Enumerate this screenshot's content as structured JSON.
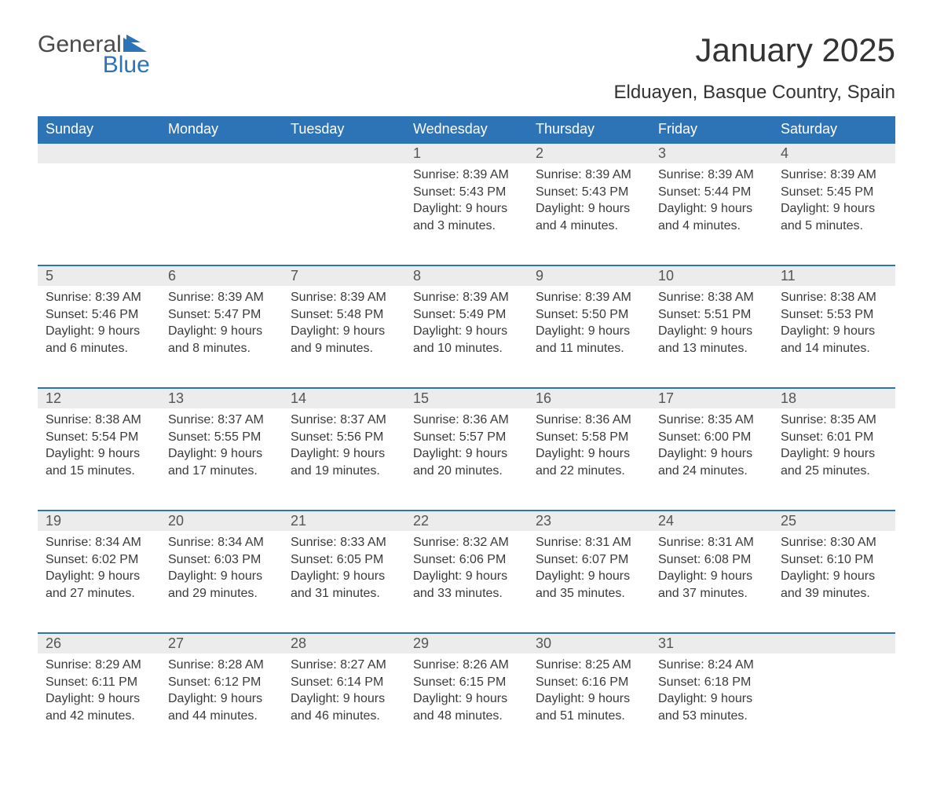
{
  "logo": {
    "text_a": "General",
    "text_b": "Blue"
  },
  "title": "January 2025",
  "location": "Elduayen, Basque Country, Spain",
  "colors": {
    "header_bg": "#2d74b6",
    "header_text": "#ffffff",
    "daynum_bg": "#ececec",
    "border_top": "#2d74b6",
    "body_text": "#3a3a3a",
    "logo_gray": "#4a4a4a",
    "logo_blue": "#2d74b6",
    "page_bg": "#ffffff"
  },
  "day_headers": [
    "Sunday",
    "Monday",
    "Tuesday",
    "Wednesday",
    "Thursday",
    "Friday",
    "Saturday"
  ],
  "weeks": [
    [
      null,
      null,
      null,
      {
        "n": "1",
        "sr": "8:39 AM",
        "ss": "5:43 PM",
        "dl": "9 hours and 3 minutes."
      },
      {
        "n": "2",
        "sr": "8:39 AM",
        "ss": "5:43 PM",
        "dl": "9 hours and 4 minutes."
      },
      {
        "n": "3",
        "sr": "8:39 AM",
        "ss": "5:44 PM",
        "dl": "9 hours and 4 minutes."
      },
      {
        "n": "4",
        "sr": "8:39 AM",
        "ss": "5:45 PM",
        "dl": "9 hours and 5 minutes."
      }
    ],
    [
      {
        "n": "5",
        "sr": "8:39 AM",
        "ss": "5:46 PM",
        "dl": "9 hours and 6 minutes."
      },
      {
        "n": "6",
        "sr": "8:39 AM",
        "ss": "5:47 PM",
        "dl": "9 hours and 8 minutes."
      },
      {
        "n": "7",
        "sr": "8:39 AM",
        "ss": "5:48 PM",
        "dl": "9 hours and 9 minutes."
      },
      {
        "n": "8",
        "sr": "8:39 AM",
        "ss": "5:49 PM",
        "dl": "9 hours and 10 minutes."
      },
      {
        "n": "9",
        "sr": "8:39 AM",
        "ss": "5:50 PM",
        "dl": "9 hours and 11 minutes."
      },
      {
        "n": "10",
        "sr": "8:38 AM",
        "ss": "5:51 PM",
        "dl": "9 hours and 13 minutes."
      },
      {
        "n": "11",
        "sr": "8:38 AM",
        "ss": "5:53 PM",
        "dl": "9 hours and 14 minutes."
      }
    ],
    [
      {
        "n": "12",
        "sr": "8:38 AM",
        "ss": "5:54 PM",
        "dl": "9 hours and 15 minutes."
      },
      {
        "n": "13",
        "sr": "8:37 AM",
        "ss": "5:55 PM",
        "dl": "9 hours and 17 minutes."
      },
      {
        "n": "14",
        "sr": "8:37 AM",
        "ss": "5:56 PM",
        "dl": "9 hours and 19 minutes."
      },
      {
        "n": "15",
        "sr": "8:36 AM",
        "ss": "5:57 PM",
        "dl": "9 hours and 20 minutes."
      },
      {
        "n": "16",
        "sr": "8:36 AM",
        "ss": "5:58 PM",
        "dl": "9 hours and 22 minutes."
      },
      {
        "n": "17",
        "sr": "8:35 AM",
        "ss": "6:00 PM",
        "dl": "9 hours and 24 minutes."
      },
      {
        "n": "18",
        "sr": "8:35 AM",
        "ss": "6:01 PM",
        "dl": "9 hours and 25 minutes."
      }
    ],
    [
      {
        "n": "19",
        "sr": "8:34 AM",
        "ss": "6:02 PM",
        "dl": "9 hours and 27 minutes."
      },
      {
        "n": "20",
        "sr": "8:34 AM",
        "ss": "6:03 PM",
        "dl": "9 hours and 29 minutes."
      },
      {
        "n": "21",
        "sr": "8:33 AM",
        "ss": "6:05 PM",
        "dl": "9 hours and 31 minutes."
      },
      {
        "n": "22",
        "sr": "8:32 AM",
        "ss": "6:06 PM",
        "dl": "9 hours and 33 minutes."
      },
      {
        "n": "23",
        "sr": "8:31 AM",
        "ss": "6:07 PM",
        "dl": "9 hours and 35 minutes."
      },
      {
        "n": "24",
        "sr": "8:31 AM",
        "ss": "6:08 PM",
        "dl": "9 hours and 37 minutes."
      },
      {
        "n": "25",
        "sr": "8:30 AM",
        "ss": "6:10 PM",
        "dl": "9 hours and 39 minutes."
      }
    ],
    [
      {
        "n": "26",
        "sr": "8:29 AM",
        "ss": "6:11 PM",
        "dl": "9 hours and 42 minutes."
      },
      {
        "n": "27",
        "sr": "8:28 AM",
        "ss": "6:12 PM",
        "dl": "9 hours and 44 minutes."
      },
      {
        "n": "28",
        "sr": "8:27 AM",
        "ss": "6:14 PM",
        "dl": "9 hours and 46 minutes."
      },
      {
        "n": "29",
        "sr": "8:26 AM",
        "ss": "6:15 PM",
        "dl": "9 hours and 48 minutes."
      },
      {
        "n": "30",
        "sr": "8:25 AM",
        "ss": "6:16 PM",
        "dl": "9 hours and 51 minutes."
      },
      {
        "n": "31",
        "sr": "8:24 AM",
        "ss": "6:18 PM",
        "dl": "9 hours and 53 minutes."
      },
      null
    ]
  ],
  "labels": {
    "sunrise": "Sunrise: ",
    "sunset": "Sunset: ",
    "daylight": "Daylight: "
  }
}
